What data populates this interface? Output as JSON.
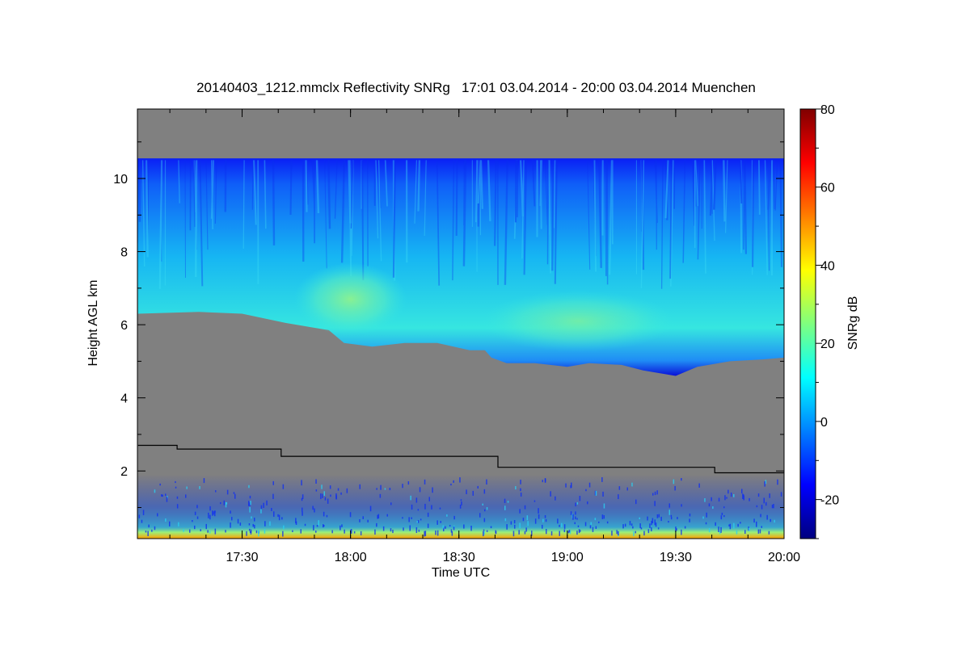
{
  "chart_data": {
    "type": "heatmap",
    "title": "20140403_1212.mmclx Reflectivity SNRg   17:01 03.04.2014 - 20:00 03.04.2014 Muenchen",
    "xlabel": "Time UTC",
    "ylabel": "Height AGL km",
    "colorbar_label": "SNRg dB",
    "x_range_hours": [
      17.017,
      20.0
    ],
    "y_range_km": [
      0.15,
      11.9
    ],
    "x_ticks": [
      {
        "value": 17.5,
        "label": "17:30"
      },
      {
        "value": 18.0,
        "label": "18:00"
      },
      {
        "value": 18.5,
        "label": "18:30"
      },
      {
        "value": 19.0,
        "label": "19:00"
      },
      {
        "value": 19.5,
        "label": "19:30"
      },
      {
        "value": 20.0,
        "label": "20:00"
      }
    ],
    "y_ticks": [
      {
        "value": 2,
        "label": "2"
      },
      {
        "value": 4,
        "label": "4"
      },
      {
        "value": 6,
        "label": "6"
      },
      {
        "value": 8,
        "label": "8"
      },
      {
        "value": 10,
        "label": "10"
      }
    ],
    "colorbar_range_db": [
      -30,
      80
    ],
    "colorbar_ticks": [
      {
        "value": -20,
        "label": "-20"
      },
      {
        "value": 0,
        "label": "0"
      },
      {
        "value": 20,
        "label": "20"
      },
      {
        "value": 40,
        "label": "40"
      },
      {
        "value": 60,
        "label": "60"
      },
      {
        "value": 80,
        "label": "80"
      }
    ],
    "colormap": [
      "#00007f",
      "#0000ff",
      "#007fff",
      "#00ffff",
      "#7fff7f",
      "#ffff00",
      "#ff7f00",
      "#ff0000",
      "#7f0000"
    ],
    "no_signal_color": "#808080",
    "cloud_layer": {
      "top_km": 10.55,
      "base_km": [
        [
          17.02,
          6.3
        ],
        [
          17.3,
          6.35
        ],
        [
          17.5,
          6.3
        ],
        [
          17.7,
          6.05
        ],
        [
          17.9,
          5.85
        ],
        [
          17.97,
          5.5
        ],
        [
          18.1,
          5.4
        ],
        [
          18.25,
          5.5
        ],
        [
          18.4,
          5.5
        ],
        [
          18.55,
          5.3
        ],
        [
          18.62,
          5.3
        ],
        [
          18.65,
          5.1
        ],
        [
          18.72,
          4.95
        ],
        [
          18.85,
          4.95
        ],
        [
          19.0,
          4.85
        ],
        [
          19.1,
          4.95
        ],
        [
          19.25,
          4.9
        ],
        [
          19.35,
          4.75
        ],
        [
          19.5,
          4.6
        ],
        [
          19.6,
          4.85
        ],
        [
          19.75,
          5.0
        ],
        [
          19.9,
          5.05
        ],
        [
          20.0,
          5.1
        ]
      ],
      "peak_snr_db": 22,
      "peak_time_hours": 18.0,
      "peak_height_km": 6.7
    },
    "boundary_line_km": [
      [
        17.02,
        2.7
      ],
      [
        17.2,
        2.7
      ],
      [
        17.2,
        2.6
      ],
      [
        17.68,
        2.6
      ],
      [
        17.68,
        2.4
      ],
      [
        18.68,
        2.4
      ],
      [
        18.68,
        2.1
      ],
      [
        19.68,
        2.1
      ],
      [
        19.68,
        1.95
      ],
      [
        20.0,
        1.95
      ]
    ]
  }
}
